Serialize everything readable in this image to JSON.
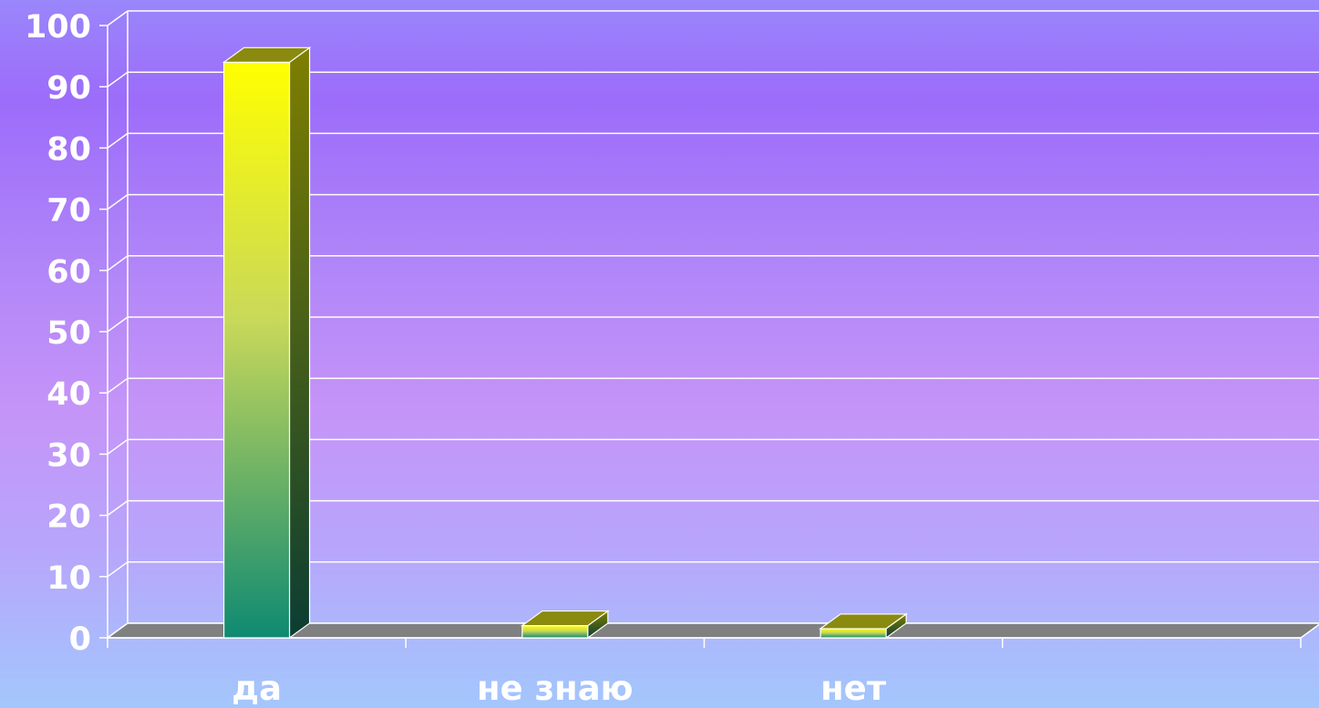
{
  "chart_data": {
    "type": "bar",
    "categories": [
      "да",
      "не знаю",
      "нет"
    ],
    "values": [
      94,
      2,
      1.5
    ],
    "ylim": [
      0,
      100
    ],
    "yticks": [
      0,
      10,
      20,
      30,
      40,
      50,
      60,
      70,
      80,
      90,
      100
    ],
    "ytick_labels": [
      "0",
      "10",
      "20",
      "30",
      "40",
      "50",
      "60",
      "70",
      "80",
      "90",
      "100"
    ],
    "grid": true,
    "legend": "none",
    "title": "",
    "xlabel": "",
    "ylabel": "",
    "colors": {
      "bar_top": "#ffff00",
      "bar_bottom": "#0e8a72",
      "floor": "#808080",
      "grid": "#ffffff",
      "text": "#ffffff"
    }
  }
}
